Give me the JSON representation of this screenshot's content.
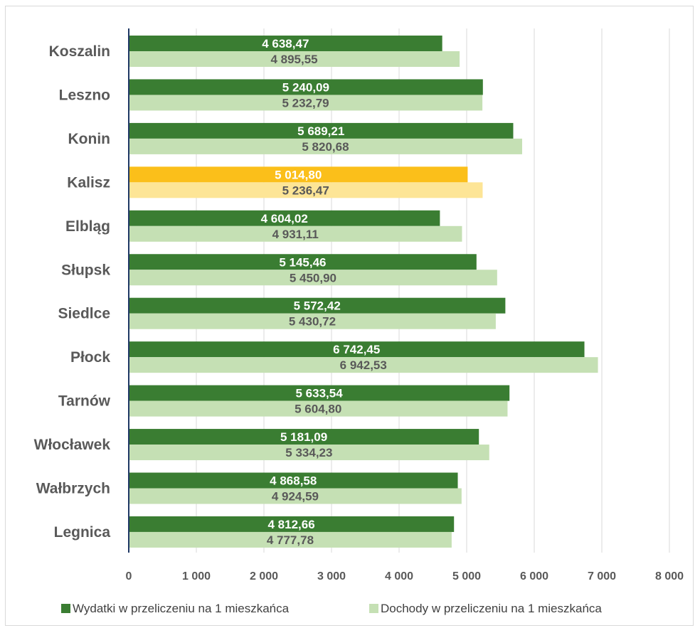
{
  "chart_data": {
    "type": "bar",
    "orientation": "horizontal",
    "categories": [
      "Koszalin",
      "Leszno",
      "Konin",
      "Kalisz",
      "Elbląg",
      "Słupsk",
      "Siedlce",
      "Płock",
      "Tarnów",
      "Włocławek",
      "Wałbrzych",
      "Legnica"
    ],
    "series": [
      {
        "name": "Wydatki w przeliczeniu na 1 mieszkańca",
        "color": "#3a7d32",
        "highlight_color": "#fbbf1a",
        "values": [
          4638.47,
          5240.09,
          5689.21,
          5014.8,
          4604.02,
          5145.46,
          5572.42,
          6742.45,
          5633.54,
          5181.09,
          4868.58,
          4812.66
        ],
        "labels": [
          "4 638,47",
          "5 240,09",
          "5 689,21",
          "5 014,80",
          "4 604,02",
          "5 145,46",
          "5 572,42",
          "6 742,45",
          "5 633,54",
          "5 181,09",
          "4 868,58",
          "4 812,66"
        ]
      },
      {
        "name": "Dochody w przeliczeniu na 1 mieszkańca",
        "color": "#c5e0b4",
        "highlight_color": "#fde596",
        "values": [
          4895.55,
          5232.79,
          5820.68,
          5236.47,
          4931.11,
          5450.9,
          5430.72,
          6942.53,
          5604.8,
          5334.23,
          4924.59,
          4777.78
        ],
        "labels": [
          "4 895,55",
          "5 232,79",
          "5 820,68",
          "5 236,47",
          "4 931,11",
          "5 450,90",
          "5 430,72",
          "6 942,53",
          "5 604,80",
          "5 334,23",
          "4 924,59",
          "4 777,78"
        ]
      }
    ],
    "highlight_category": "Kalisz",
    "xlim": [
      0,
      8000
    ],
    "xticks": [
      0,
      1000,
      2000,
      3000,
      4000,
      5000,
      6000,
      7000,
      8000
    ],
    "xtick_labels": [
      "0",
      "1 000",
      "2 000",
      "3 000",
      "4 000",
      "5 000",
      "6 000",
      "7 000",
      "8 000"
    ],
    "grid": "vertical",
    "legend": "bottom",
    "title": "",
    "xlabel": "",
    "ylabel": ""
  }
}
